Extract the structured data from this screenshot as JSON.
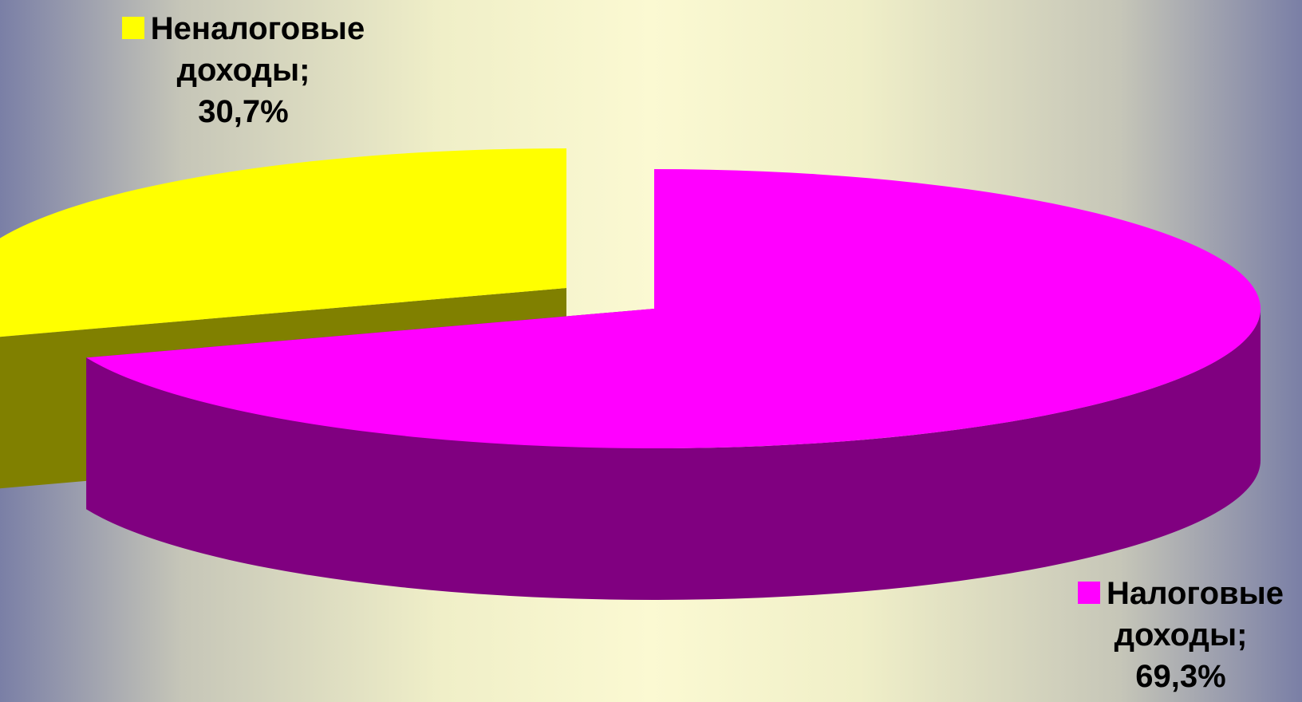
{
  "chart_data": {
    "type": "pie",
    "style": "3d-exploded",
    "series": [
      {
        "name": "Неналоговые доходы",
        "value": 30.7,
        "label_lines": [
          "Неналоговые",
          "доходы;",
          "30,7%"
        ],
        "color": "#FFFF00",
        "side_color": "#808000"
      },
      {
        "name": "Налоговые доходы",
        "value": 69.3,
        "label_lines": [
          "Налоговые",
          "доходы;",
          "69,3%"
        ],
        "color": "#FF00FF",
        "side_color": "#800080"
      }
    ]
  }
}
